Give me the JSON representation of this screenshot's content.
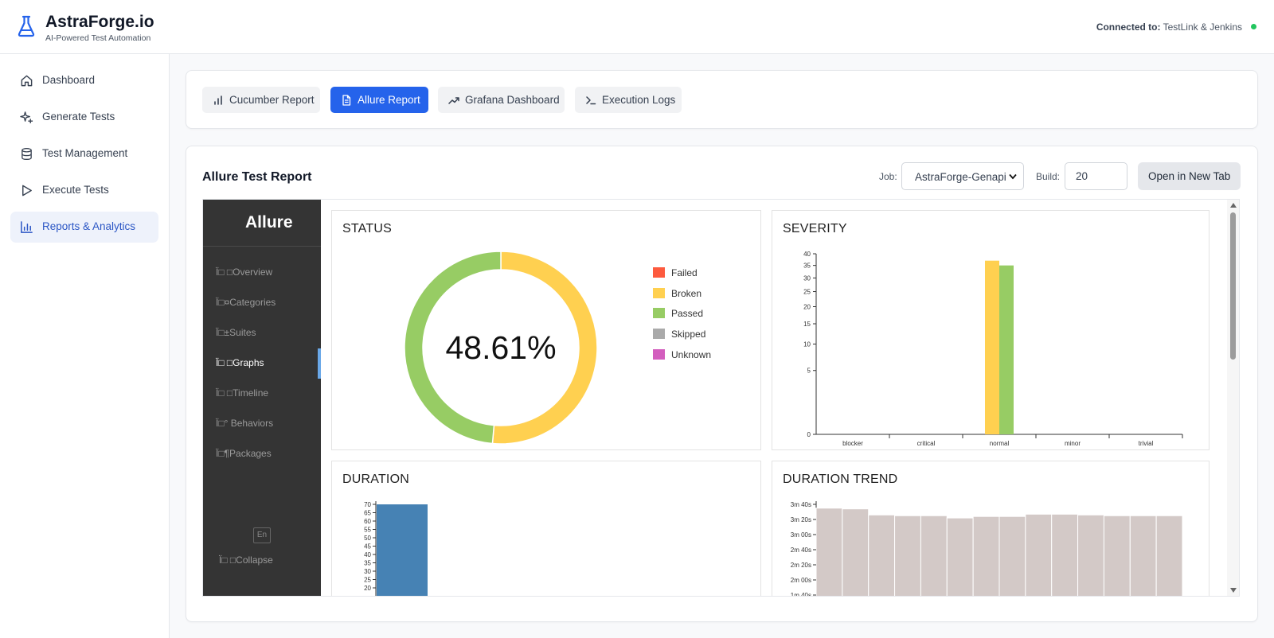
{
  "header": {
    "brand": "AstraForge.io",
    "tagline": "AI-Powered Test Automation",
    "connection_label": "Connected to:",
    "connection_value": "TestLink & Jenkins",
    "status_color": "#22c55e"
  },
  "sidebar": {
    "items": [
      {
        "label": "Dashboard",
        "icon": "home-icon"
      },
      {
        "label": "Generate Tests",
        "icon": "sparkles-icon"
      },
      {
        "label": "Test Management",
        "icon": "database-icon"
      },
      {
        "label": "Execute Tests",
        "icon": "play-icon"
      },
      {
        "label": "Reports & Analytics",
        "icon": "bar-chart-icon",
        "active": true
      }
    ]
  },
  "tabs": [
    {
      "label": "Cucumber Report",
      "icon": "bar-chart-icon"
    },
    {
      "label": "Allure Report",
      "icon": "file-text-icon",
      "active": true
    },
    {
      "label": "Grafana Dashboard",
      "icon": "trending-up-icon"
    },
    {
      "label": "Execution Logs",
      "icon": "terminal-icon"
    }
  ],
  "report": {
    "title": "Allure Test Report",
    "job_label": "Job:",
    "job_value": "AstraForge-Genapi",
    "build_label": "Build:",
    "build_value": "20",
    "open_button": "Open in New Tab"
  },
  "allure": {
    "logo": "Allure",
    "nav": [
      {
        "label": "Ï□ □Overview"
      },
      {
        "label": "Ï□¤Categories"
      },
      {
        "label": "Ï□±Suites"
      },
      {
        "label": "Ï□ □Graphs",
        "active": true
      },
      {
        "label": "Ï□ □Timeline"
      },
      {
        "label": "Ï□° Behaviors"
      },
      {
        "label": "Ï□¶Packages"
      }
    ],
    "lang": "En",
    "collapse": "Ï□ □Collapse"
  },
  "chart_data": [
    {
      "type": "pie",
      "title": "STATUS",
      "center_label": "48.61%",
      "labels": [
        "Failed",
        "Broken",
        "Passed",
        "Skipped",
        "Unknown"
      ],
      "colors": [
        "#fd5a3e",
        "#ffd050",
        "#97cc64",
        "#aaaaaa",
        "#d35ebe"
      ],
      "values": [
        0,
        51.39,
        48.61,
        0,
        0
      ]
    },
    {
      "type": "bar",
      "title": "SEVERITY",
      "categories": [
        "blocker",
        "critical",
        "normal",
        "minor",
        "trivial"
      ],
      "ylim": [
        0,
        40
      ],
      "yticks": [
        0,
        5,
        10,
        15,
        20,
        25,
        30,
        35,
        40
      ],
      "series": [
        {
          "name": "Broken",
          "color": "#ffd050",
          "values": [
            0,
            0,
            37,
            0,
            0
          ]
        },
        {
          "name": "Passed",
          "color": "#97cc64",
          "values": [
            0,
            0,
            35,
            0,
            0
          ]
        }
      ]
    },
    {
      "type": "bar",
      "title": "DURATION",
      "yticks": [
        20,
        25,
        30,
        35,
        40,
        45,
        50,
        55,
        60,
        65,
        70
      ],
      "values": [
        70
      ],
      "color": "#4682b4"
    },
    {
      "type": "area",
      "title": "DURATION TREND",
      "yticks": [
        "1m 40s",
        "2m 00s",
        "2m 20s",
        "2m 40s",
        "3m 00s",
        "3m 20s",
        "3m 40s"
      ],
      "values_seconds": [
        215,
        214,
        206,
        205,
        205,
        202,
        204,
        204,
        207,
        207,
        206,
        205,
        205,
        205
      ],
      "color": "#d3c9c7"
    }
  ]
}
